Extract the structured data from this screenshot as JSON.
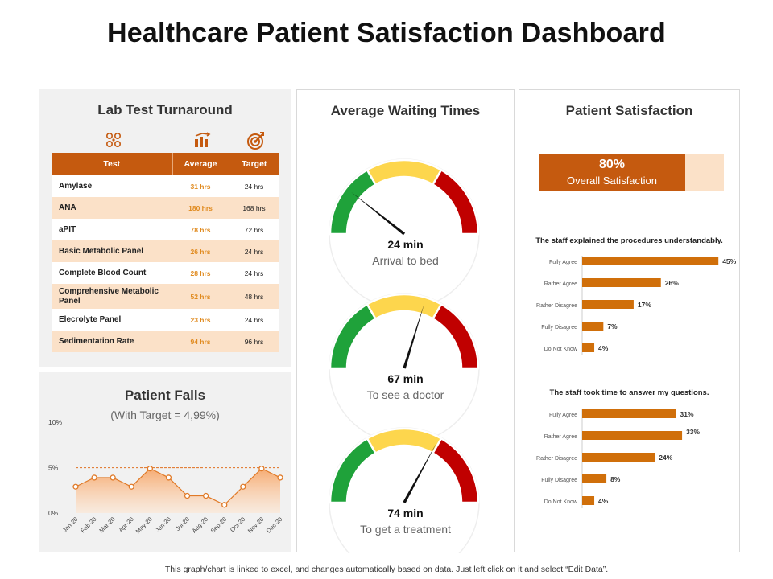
{
  "title": "Healthcare Patient Satisfaction Dashboard",
  "lab": {
    "title": "Lab Test Turnaround",
    "icons": [
      "molecule-icon",
      "bar-chart-icon",
      "target-icon"
    ],
    "headers": [
      "Test",
      "Average",
      "Target"
    ],
    "rows": [
      {
        "test": "Amylase",
        "average": "31 hrs",
        "target": "24 hrs"
      },
      {
        "test": "ANA",
        "average": "180 hrs",
        "target": "168 hrs"
      },
      {
        "test": "aPIT",
        "average": "78 hrs",
        "target": "72 hrs"
      },
      {
        "test": "Basic Metabolic Panel",
        "average": "26 hrs",
        "target": "24 hrs"
      },
      {
        "test": "Complete Blood Count",
        "average": "28 hrs",
        "target": "24 hrs"
      },
      {
        "test": "Comprehensive Metabolic Panel",
        "average": "52 hrs",
        "target": "48 hrs"
      },
      {
        "test": "Elecrolyte Panel",
        "average": "23 hrs",
        "target": "24 hrs"
      },
      {
        "test": "Sedimentation Rate",
        "average": "94 hrs",
        "target": "96 hrs"
      }
    ]
  },
  "falls": {
    "title": "Patient Falls",
    "subtitle": "(With Target = 4,99%)"
  },
  "waiting": {
    "title": "Average Waiting Times",
    "gauges": [
      {
        "value": "24 min",
        "caption": "Arrival to bed",
        "minutes": 24
      },
      {
        "value": "67 min",
        "caption": "To see a doctor",
        "minutes": 67
      },
      {
        "value": "74 min",
        "caption": "To get a treatment",
        "minutes": 74
      }
    ]
  },
  "satisfaction": {
    "title": "Patient Satisfaction",
    "overall_pct": "80%",
    "overall_value": 80,
    "overall_caption": "Overall Satisfaction",
    "q1_title": "The staff explained the procedures understandably.",
    "q2_title": "The staff took time to answer my questions."
  },
  "footer": "This graph/chart is linked to excel, and changes automatically based on data. Just left click on it and select “Edit Data”.",
  "colors": {
    "orange_dark": "#c55a0f",
    "orange_bar": "#d06f0a",
    "orange_light": "#fbe1c8",
    "gauge_green": "#1fa23a",
    "gauge_yellow": "#fdd64d",
    "gauge_red": "#c00000"
  },
  "chart_data": [
    {
      "type": "line",
      "title": "Patient Falls",
      "subtitle": "(With Target = 4,99%)",
      "categories": [
        "Jan-20",
        "Feb-20",
        "Mar-20",
        "Apr-20",
        "May-20",
        "Jun-20",
        "Jul-20",
        "Aug-20",
        "Sep-20",
        "Oct-20",
        "Nov-20",
        "Dec-20"
      ],
      "series": [
        {
          "values": [
            2.9,
            3.9,
            3.9,
            2.9,
            4.9,
            3.9,
            1.9,
            1.9,
            0.9,
            2.9,
            4.9,
            3.9
          ]
        }
      ],
      "target": 4.99,
      "yticks": [
        "0%",
        "5%",
        "10%"
      ],
      "ylim": [
        0,
        10
      ],
      "area_fill": true
    },
    {
      "type": "bar",
      "orientation": "horizontal",
      "title": "The staff explained the procedures understandably.",
      "categories": [
        "Fully Agree",
        "Rather Agree",
        "Rather Disagree",
        "Fully Disagree",
        "Do Not Know"
      ],
      "values": [
        45,
        26,
        17,
        7,
        4
      ],
      "labels": [
        "45%",
        "26%",
        "17%",
        "7%",
        "4%"
      ],
      "xlim": [
        0,
        50
      ]
    },
    {
      "type": "bar",
      "orientation": "horizontal",
      "title": "The staff took time to answer my questions.",
      "categories": [
        "Fully Agree",
        "Rather Agree",
        "Rather Disagree",
        "Fully Disagree",
        "Do Not Know"
      ],
      "values": [
        31,
        33,
        24,
        8,
        4
      ],
      "labels": [
        "31%",
        "33%",
        "24%",
        "8%",
        "4%"
      ],
      "xlim": [
        0,
        50
      ]
    }
  ]
}
